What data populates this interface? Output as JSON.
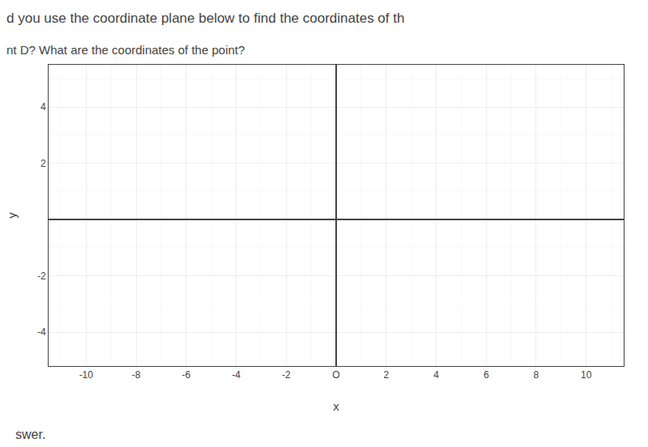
{
  "chart_data": {
    "type": "scatter",
    "title": "d you use the coordinate plane below to find the coordinates of th",
    "subtitle": "nt D? What are the coordinates of the point?",
    "annotations": [
      "swer."
    ],
    "xlabel": "x",
    "ylabel": "y",
    "xlim": [
      -11.5,
      11.5
    ],
    "ylim": [
      -5.2,
      5.5
    ],
    "xticks": [
      -10,
      -8,
      -6,
      -4,
      -2,
      {
        "value": 0,
        "label": "O"
      },
      2,
      4,
      6,
      8,
      10
    ],
    "yticks": [
      -4,
      -2,
      2,
      4
    ],
    "grid": true
  }
}
